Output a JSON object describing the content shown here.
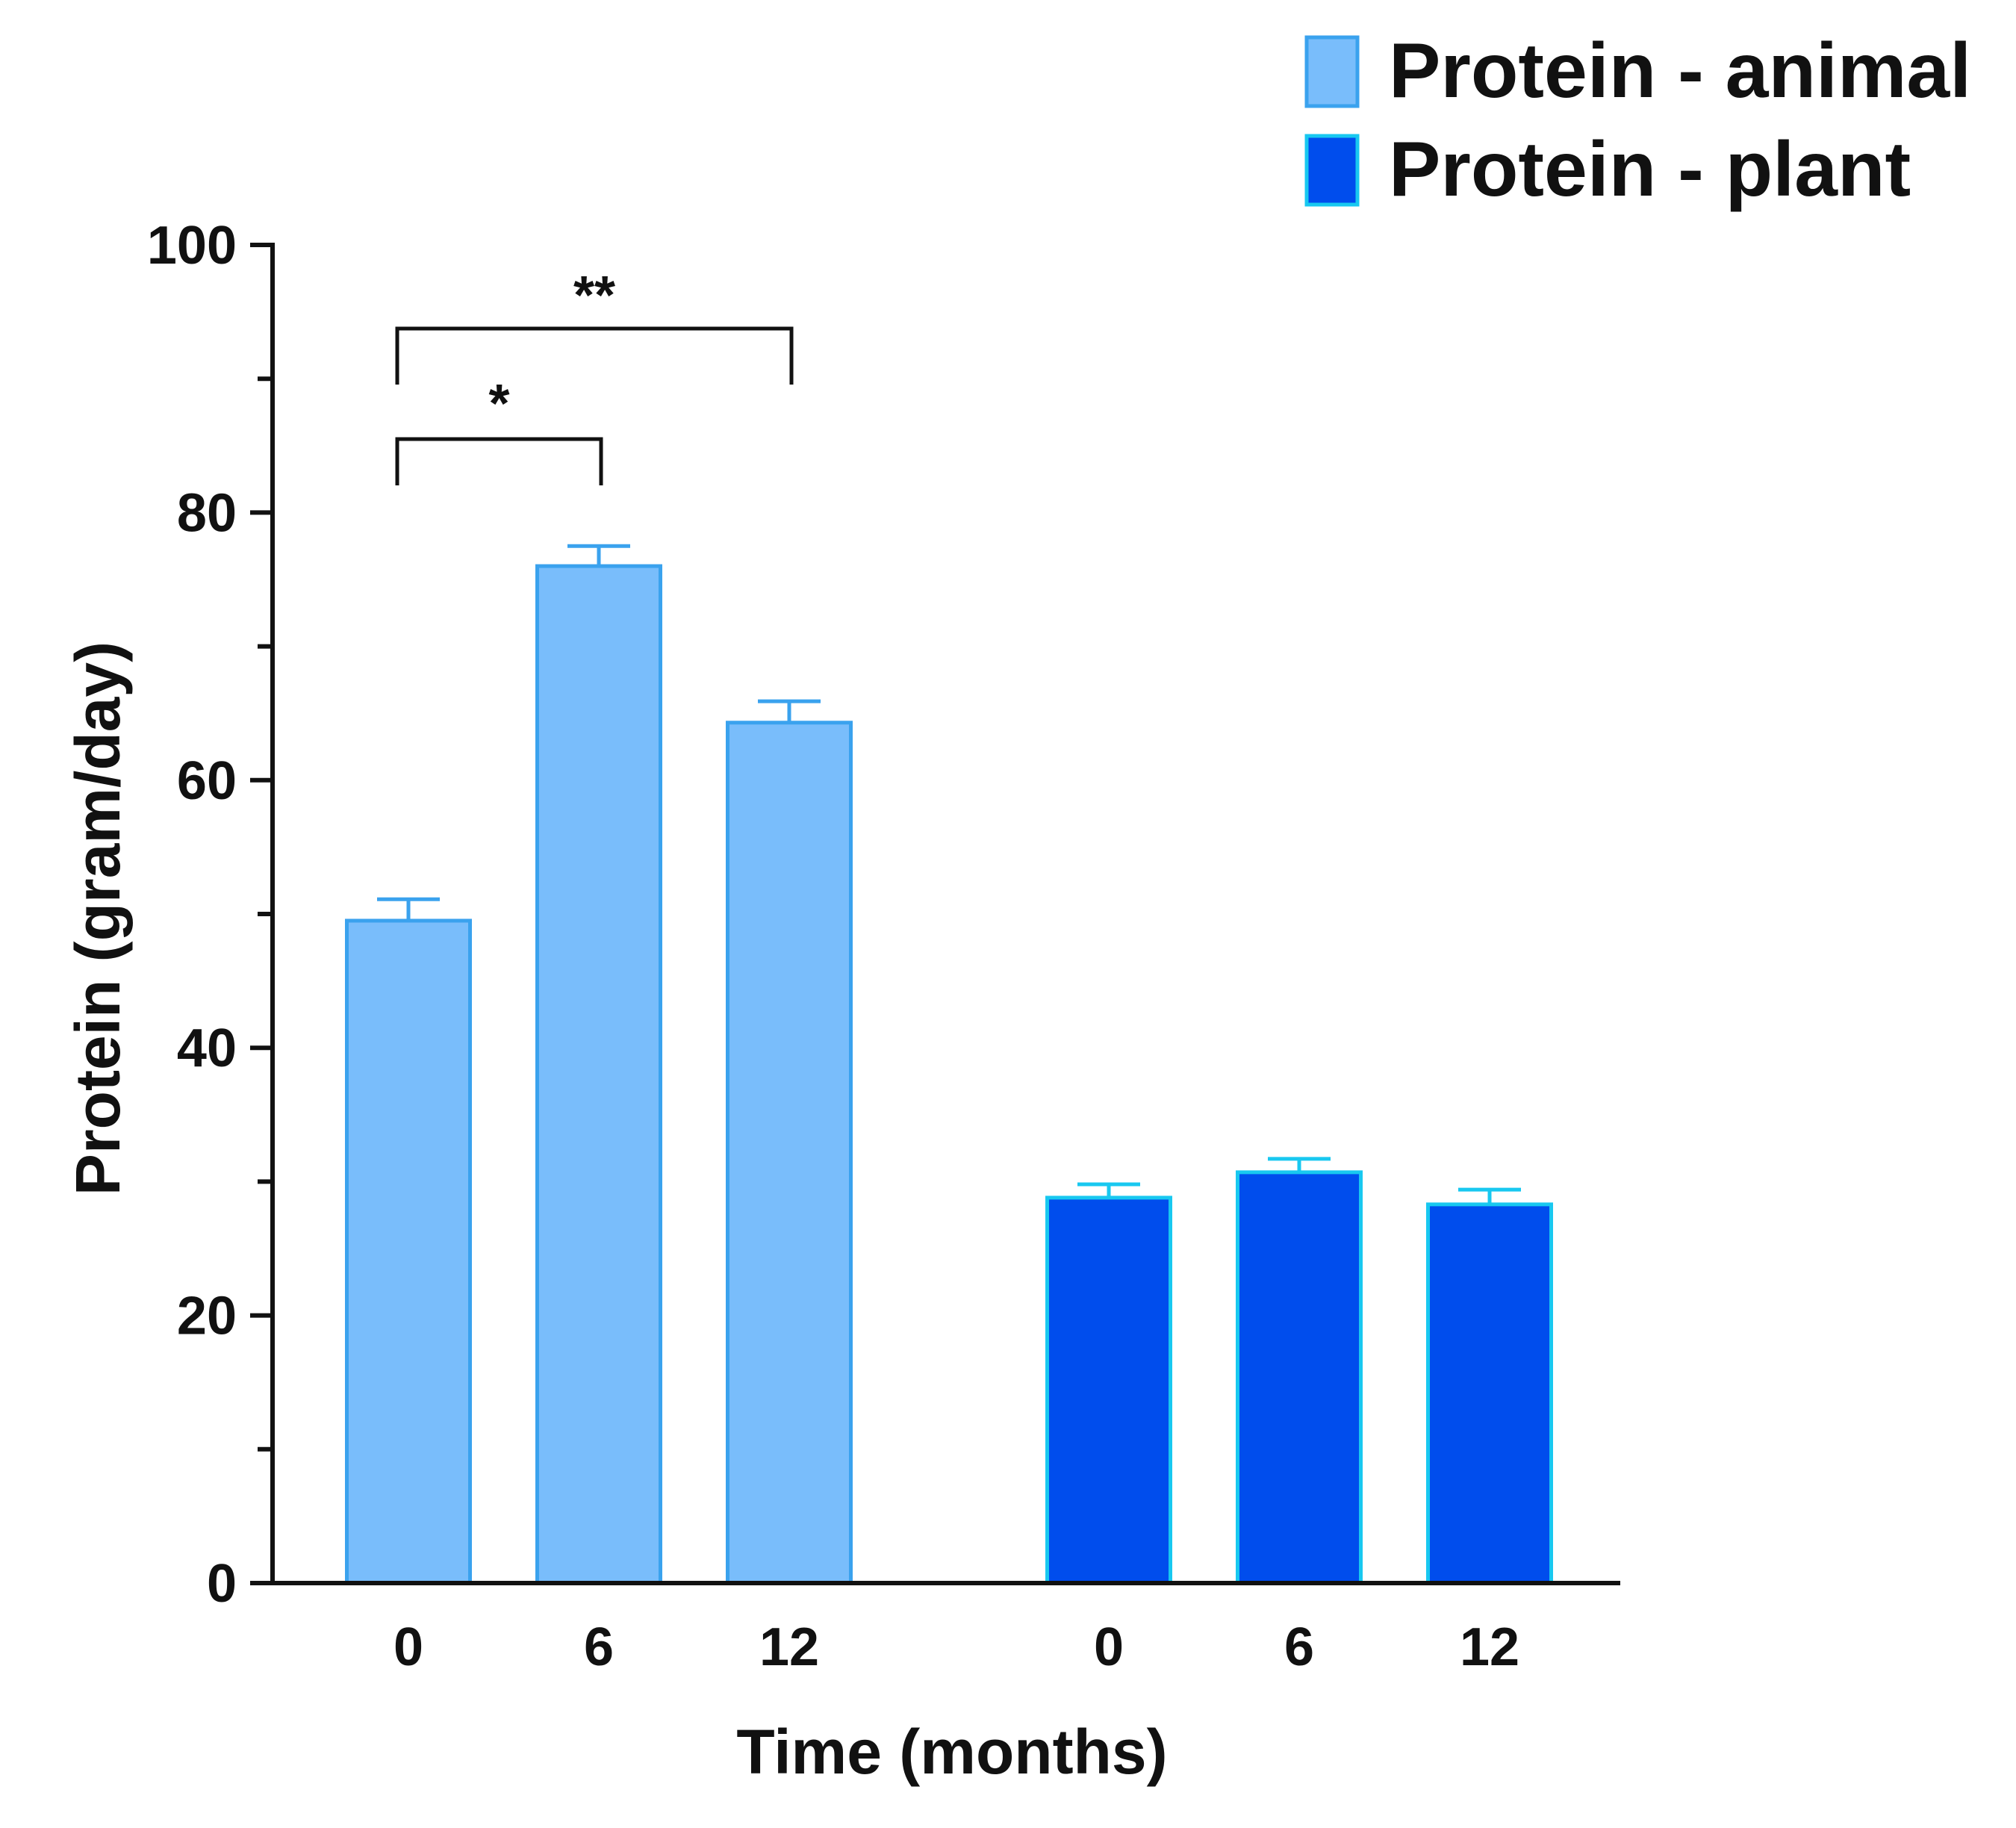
{
  "chart_data": {
    "type": "bar",
    "title": "",
    "xlabel": "Time (months)",
    "ylabel": "Protein (gram/day)",
    "ylim": [
      0,
      100
    ],
    "yticks": [
      0,
      20,
      40,
      60,
      80,
      100
    ],
    "y_minor_step": 10,
    "grid": false,
    "legend_position": "top-right",
    "groups": [
      {
        "name": "Protein - animal",
        "fill": "#79bdfb",
        "stroke": "#3aa2ee",
        "categories": [
          "0",
          "6",
          "12"
        ],
        "values": [
          49.5,
          76.0,
          64.3
        ],
        "errors": [
          1.6,
          1.5,
          1.6
        ]
      },
      {
        "name": "Protein - plant",
        "fill": "#004ded",
        "stroke": "#18c8f0",
        "categories": [
          "0",
          "6",
          "12"
        ],
        "values": [
          28.8,
          30.7,
          28.3
        ],
        "errors": [
          1.0,
          1.0,
          1.1
        ]
      }
    ],
    "annotations": [
      {
        "label": "*",
        "group": 0,
        "from": 0,
        "to": 1
      },
      {
        "label": "**",
        "group": 0,
        "from": 0,
        "to": 2
      }
    ]
  }
}
